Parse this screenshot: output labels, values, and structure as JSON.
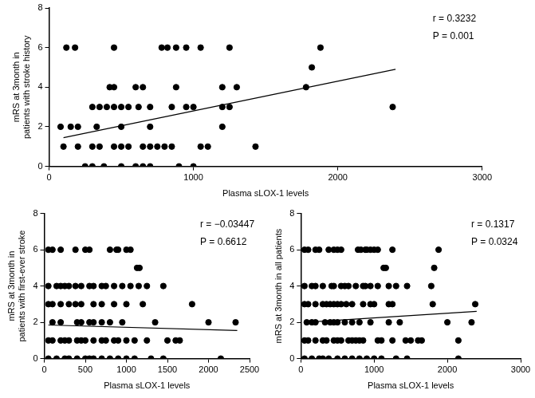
{
  "chart_data": [
    {
      "type": "scatter",
      "x_label": "Plasma sLOX-1 levels",
      "y_label": [
        "mRS at 3month in",
        "patients with stroke history"
      ],
      "annotations": [
        "r = 0.3232",
        "P = 0.001"
      ],
      "xlim": [
        0,
        3000
      ],
      "xticks": [
        0,
        1000,
        2000,
        3000
      ],
      "ylim": [
        0,
        8
      ],
      "yticks": [
        0,
        2,
        4,
        6,
        8
      ],
      "grid": false,
      "series": [
        {
          "type": "scatter",
          "color": "#000000",
          "marker": "circle",
          "x": [
            120,
            180,
            450,
            780,
            820,
            880,
            950,
            1050,
            1250,
            1880,
            1820,
            420,
            450,
            600,
            650,
            880,
            1200,
            1300,
            1780,
            300,
            350,
            400,
            450,
            500,
            550,
            620,
            700,
            850,
            950,
            1000,
            1200,
            1250,
            2380,
            80,
            150,
            200,
            330,
            500,
            700,
            1200,
            100,
            200,
            300,
            350,
            450,
            500,
            550,
            650,
            700,
            750,
            800,
            850,
            1050,
            1100,
            1430,
            250,
            300,
            380,
            500,
            600,
            650,
            700,
            900,
            1000
          ],
          "values": [
            6,
            6,
            6,
            6,
            6,
            6,
            6,
            6,
            6,
            6,
            5,
            4,
            4,
            4,
            4,
            4,
            4,
            4,
            4,
            3,
            3,
            3,
            3,
            3,
            3,
            3,
            3,
            3,
            3,
            3,
            3,
            3,
            3,
            2,
            2,
            2,
            2,
            2,
            2,
            2,
            1,
            1,
            1,
            1,
            1,
            1,
            1,
            1,
            1,
            1,
            1,
            1,
            1,
            1,
            1,
            0,
            0,
            0,
            0,
            0,
            0,
            0,
            0,
            0
          ]
        },
        {
          "type": "line",
          "color": "#000000",
          "line_style": "solid",
          "x": [
            100,
            2400
          ],
          "values": [
            1.45,
            4.9
          ]
        }
      ]
    },
    {
      "type": "scatter",
      "x_label": "Plasma sLOX-1 levels",
      "y_label": [
        "mRS at 3month in",
        "patients with first-ever stroke"
      ],
      "annotations": [
        "r = −0.03447",
        "P = 0.6612"
      ],
      "xlim": [
        0,
        2500
      ],
      "xticks": [
        0,
        500,
        1000,
        1500,
        2000,
        2500
      ],
      "ylim": [
        0,
        8
      ],
      "yticks": [
        0,
        2,
        4,
        6,
        8
      ],
      "grid": false,
      "series": [
        {
          "type": "scatter",
          "color": "#000000",
          "marker": "circle",
          "x": [
            50,
            100,
            200,
            380,
            500,
            550,
            800,
            880,
            900,
            1000,
            1050,
            1130,
            1160,
            50,
            150,
            200,
            250,
            300,
            380,
            450,
            550,
            600,
            700,
            750,
            850,
            950,
            1050,
            1150,
            1250,
            1450,
            50,
            100,
            200,
            300,
            380,
            450,
            600,
            700,
            850,
            1000,
            1200,
            1800,
            100,
            200,
            400,
            450,
            550,
            600,
            700,
            800,
            950,
            1350,
            2000,
            2330,
            50,
            100,
            200,
            250,
            300,
            400,
            450,
            500,
            600,
            700,
            750,
            850,
            900,
            1000,
            1100,
            1250,
            1500,
            1600,
            1650,
            50,
            150,
            250,
            300,
            400,
            500,
            550,
            600,
            700,
            800,
            900,
            1000,
            1100,
            1300,
            1450,
            2150
          ],
          "values": [
            6,
            6,
            6,
            6,
            6,
            6,
            6,
            6,
            6,
            6,
            6,
            5,
            5,
            4,
            4,
            4,
            4,
            4,
            4,
            4,
            4,
            4,
            4,
            4,
            4,
            4,
            4,
            4,
            4,
            4,
            3,
            3,
            3,
            3,
            3,
            3,
            3,
            3,
            3,
            3,
            3,
            3,
            2,
            2,
            2,
            2,
            2,
            2,
            2,
            2,
            2,
            2,
            2,
            2,
            1,
            1,
            1,
            1,
            1,
            1,
            1,
            1,
            1,
            1,
            1,
            1,
            1,
            1,
            1,
            1,
            1,
            1,
            1,
            0,
            0,
            0,
            0,
            0,
            0,
            0,
            0,
            0,
            0,
            0,
            0,
            0,
            0,
            0,
            0
          ]
        },
        {
          "type": "line",
          "color": "#000000",
          "line_style": "solid",
          "x": [
            50,
            2350
          ],
          "values": [
            1.85,
            1.55
          ]
        }
      ]
    },
    {
      "type": "scatter",
      "x_label": "Plasma sLOX-1 levels",
      "y_label": [
        "mRS at 3month in all patients"
      ],
      "annotations": [
        "r = 0.1317",
        "P = 0.0324"
      ],
      "xlim": [
        0,
        3000
      ],
      "xticks": [
        0,
        1000,
        2000,
        3000
      ],
      "ylim": [
        0,
        8
      ],
      "yticks": [
        0,
        2,
        4,
        6,
        8
      ],
      "grid": false,
      "series": [
        {
          "type": "scatter",
          "color": "#000000",
          "marker": "circle",
          "x": [
            50,
            100,
            200,
            250,
            380,
            450,
            500,
            550,
            780,
            820,
            880,
            900,
            950,
            1000,
            1050,
            1250,
            1880,
            1130,
            1160,
            1820,
            50,
            150,
            200,
            300,
            420,
            450,
            550,
            600,
            650,
            750,
            850,
            880,
            950,
            1050,
            1200,
            1300,
            1450,
            1780,
            50,
            100,
            200,
            300,
            350,
            400,
            450,
            500,
            550,
            620,
            700,
            850,
            950,
            1000,
            1200,
            1250,
            1800,
            2380,
            80,
            150,
            200,
            330,
            400,
            450,
            500,
            600,
            700,
            800,
            950,
            1200,
            1350,
            2000,
            2330,
            50,
            100,
            200,
            300,
            350,
            450,
            500,
            550,
            650,
            700,
            750,
            800,
            850,
            1050,
            1100,
            1250,
            1430,
            1500,
            1600,
            1650,
            2150,
            50,
            150,
            250,
            300,
            380,
            500,
            600,
            700,
            800,
            900,
            1000,
            1100,
            1300,
            1450,
            2150
          ],
          "values": [
            6,
            6,
            6,
            6,
            6,
            6,
            6,
            6,
            6,
            6,
            6,
            6,
            6,
            6,
            6,
            6,
            6,
            5,
            5,
            5,
            4,
            4,
            4,
            4,
            4,
            4,
            4,
            4,
            4,
            4,
            4,
            4,
            4,
            4,
            4,
            4,
            4,
            4,
            3,
            3,
            3,
            3,
            3,
            3,
            3,
            3,
            3,
            3,
            3,
            3,
            3,
            3,
            3,
            3,
            3,
            3,
            2,
            2,
            2,
            2,
            2,
            2,
            2,
            2,
            2,
            2,
            2,
            2,
            2,
            2,
            2,
            1,
            1,
            1,
            1,
            1,
            1,
            1,
            1,
            1,
            1,
            1,
            1,
            1,
            1,
            1,
            1,
            1,
            1,
            1,
            1,
            1,
            0,
            0,
            0,
            0,
            0,
            0,
            0,
            0,
            0,
            0,
            0,
            0,
            0,
            0,
            0
          ]
        },
        {
          "type": "line",
          "color": "#000000",
          "line_style": "solid",
          "x": [
            50,
            2400
          ],
          "values": [
            2.0,
            2.6
          ]
        }
      ]
    }
  ]
}
